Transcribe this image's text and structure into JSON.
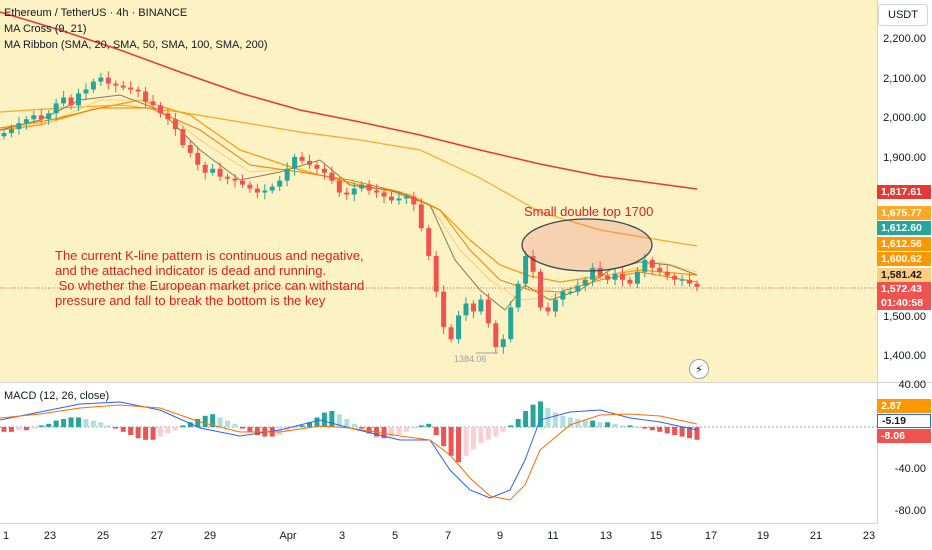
{
  "legend": {
    "symbol": "Ethereum / TetherUS · 4h · BINANCE",
    "ma_cross": "MA Cross (9, 21)",
    "ma_ribbon": "MA Ribbon (SMA, 20, SMA, 50, SMA, 100, SMA, 200)"
  },
  "annotations": {
    "note": "The current K-line pattern is continuous and negative,\nand the attached indicator is dead and running.\n So whether the European market price can withstand\npressure and fall to break the bottom is the key",
    "double_top": "Small double top 1700",
    "low_marker": "1384.06"
  },
  "macd": {
    "label": "MACD (12, 26, close)"
  },
  "currency": "USDT",
  "price_axis": {
    "ticks": [
      "2,200.00",
      "2,100.00",
      "2,000.00",
      "1,900.00",
      "1,500.00",
      "1,400.00"
    ],
    "tags": [
      {
        "text": "1,817.61",
        "color": "#e53935"
      },
      {
        "text": "1,675.77",
        "color": "#ffa726"
      },
      {
        "text": "1,612.60",
        "color": "#26a69a"
      },
      {
        "text": "1,612.56",
        "color": "#ff9800"
      },
      {
        "text": "1,600.62",
        "color": "#ff9800"
      },
      {
        "text": "1,581.42",
        "color": "#ffcc80"
      },
      {
        "text": "1,572.43",
        "color": "#ef5350"
      },
      {
        "text": "01:40:58",
        "color": "#ef5350"
      }
    ]
  },
  "macd_axis": {
    "ticks": [
      "40.00",
      "-40.00",
      "-80.00"
    ],
    "tags": [
      {
        "text": "2.87",
        "color": "#ff9800"
      },
      {
        "text": "-5.19",
        "color": "#ffffff"
      },
      {
        "text": "-8.06",
        "color": "#ef5350"
      }
    ]
  },
  "time_axis": [
    "1",
    "23",
    "25",
    "27",
    "29",
    "Apr",
    "3",
    "5",
    "7",
    "9",
    "11",
    "13",
    "15",
    "17",
    "19",
    "21",
    "23"
  ],
  "chart_data": {
    "type": "candlestick",
    "title": "Ethereum / TetherUS · 4h · BINANCE",
    "ylim": [
      1350,
      2230
    ],
    "closes": [
      1960,
      1970,
      1985,
      1995,
      2005,
      1995,
      2010,
      2035,
      2050,
      2030,
      2060,
      2070,
      2090,
      2100,
      2085,
      2080,
      2075,
      2070,
      2065,
      2040,
      2030,
      2010,
      1995,
      1970,
      1930,
      1910,
      1880,
      1860,
      1870,
      1850,
      1845,
      1840,
      1830,
      1820,
      1810,
      1815,
      1825,
      1840,
      1870,
      1900,
      1890,
      1880,
      1870,
      1860,
      1840,
      1810,
      1805,
      1820,
      1830,
      1815,
      1810,
      1800,
      1790,
      1795,
      1800,
      1780,
      1720,
      1650,
      1560,
      1470,
      1440,
      1500,
      1530,
      1510,
      1540,
      1480,
      1420,
      1440,
      1520,
      1580,
      1650,
      1610,
      1520,
      1510,
      1540,
      1560,
      1560,
      1575,
      1590,
      1620,
      1600,
      1590,
      1605,
      1590,
      1580,
      1610,
      1640,
      1620,
      1610,
      1600,
      1590,
      1590,
      1580,
      1572
    ],
    "last_price": 1572.43,
    "ma_lines": [
      {
        "name": "SMA 200",
        "color": "#e53935",
        "last": 1817.61
      },
      {
        "name": "SMA 100",
        "color": "#ffa726",
        "last": 1675.77
      },
      {
        "name": "SMA 50",
        "color": "#ff9800",
        "last": 1612.56
      },
      {
        "name": "SMA 20",
        "color": "#ffb74d",
        "last": 1600.62
      }
    ],
    "macd": {
      "ylim": [
        -95,
        45
      ],
      "hist": [
        -3,
        -3,
        -2,
        -2,
        -1,
        1,
        2,
        4,
        5,
        6,
        6,
        5,
        4,
        3,
        1,
        -1,
        -3,
        -5,
        -7,
        -8,
        -8,
        -6,
        -4,
        -2,
        1,
        3,
        5,
        7,
        8,
        6,
        4,
        2,
        -1,
        -3,
        -5,
        -6,
        -6,
        -5,
        -3,
        -1,
        1,
        3,
        6,
        9,
        10,
        8,
        5,
        2,
        -1,
        -4,
        -6,
        -7,
        -6,
        -5,
        -3,
        -1,
        1,
        2,
        -5,
        -12,
        -18,
        -22,
        -18,
        -14,
        -10,
        -8,
        -6,
        -3,
        1,
        5,
        10,
        14,
        16,
        12,
        9,
        7,
        6,
        5,
        4,
        4,
        3,
        3,
        2,
        1,
        1,
        0,
        -1,
        -2,
        -3,
        -4,
        -5,
        -6,
        -7,
        -8
      ],
      "macd_last": -5.19,
      "signal_last": 2.87,
      "hist_last": -8.06
    }
  }
}
